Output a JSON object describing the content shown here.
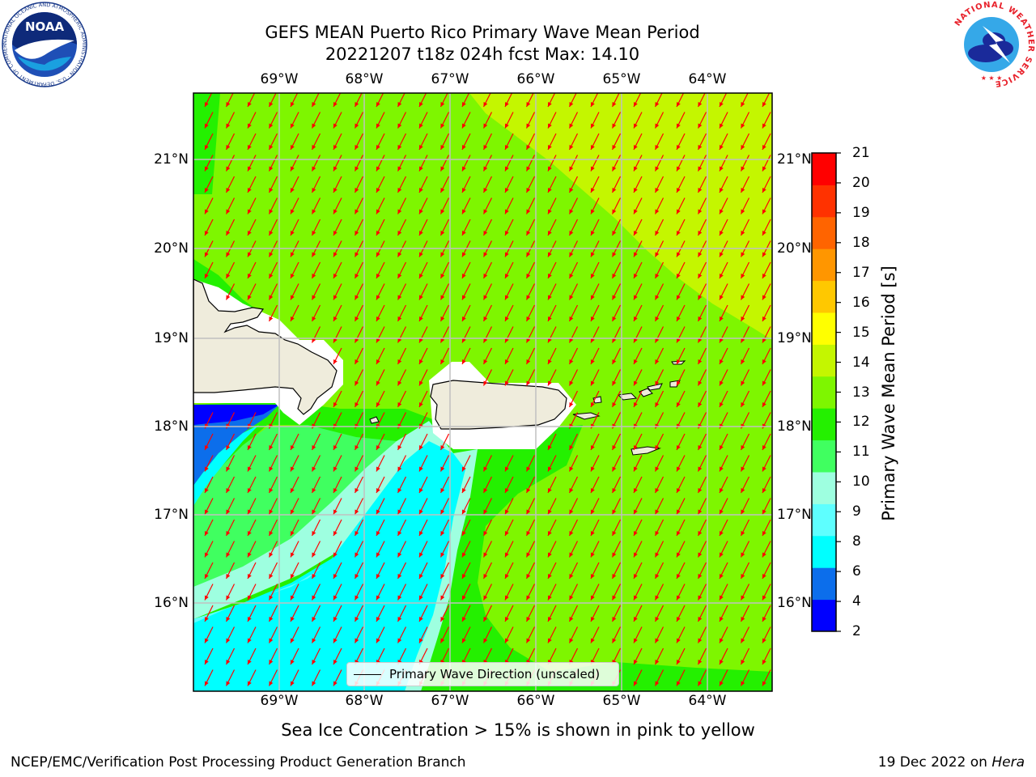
{
  "title_line1": "GEFS MEAN Puerto Rico Primary Wave Mean Period",
  "title_line2": "20221207 t18z 024h fcst   Max: 14.10",
  "lon_labels": [
    "69°W",
    "68°W",
    "67°W",
    "66°W",
    "65°W",
    "64°W"
  ],
  "lat_labels": [
    "21°N",
    "20°N",
    "19°N",
    "18°N",
    "17°N",
    "16°N"
  ],
  "legend_label": "Primary Wave Direction (unscaled)",
  "note": "Sea Ice Concentration > 15% is shown in pink to yellow",
  "footer_left": "NCEP/EMC/Verification Post Processing Product Generation Branch",
  "footer_right_text": "19 Dec 2022 on ",
  "footer_right_host": "Hera",
  "colorbar": {
    "title": "Primary Wave Mean Period [s]",
    "ticks": [
      "21",
      "20",
      "19",
      "18",
      "17",
      "16",
      "15",
      "14",
      "13",
      "12",
      "11",
      "10",
      "9",
      "8",
      "6",
      "4",
      "2"
    ],
    "colors": [
      "#0000ff",
      "#0c6eeb",
      "#00ffff",
      "#5effff",
      "#9effe0",
      "#40ff60",
      "#24f000",
      "#7ef600",
      "#c4f600",
      "#ffff00",
      "#ffc800",
      "#ff9600",
      "#ff6400",
      "#ff3200",
      "#ff0000"
    ]
  },
  "map_colors": {
    "p13": "#7ef600",
    "p14": "#c4f600",
    "p11": "#24f000",
    "p10": "#40ff60",
    "p9": "#9effe0",
    "p8": "#5effff",
    "p7": "#00ffff",
    "p5": "#0c6eeb",
    "p3": "#0000ff",
    "land": "#efecdc",
    "arrow": "#ff0000",
    "grid": "#c0c0c0"
  },
  "logos": {
    "noaa_text": "NOAA",
    "noaa_ring": "NATIONAL OCEANIC AND ATMOSPHERIC ADMINISTRATION · U.S. DEPARTMENT OF COMMERCE",
    "nws_ring": "NATIONAL WEATHER SERVICE"
  }
}
